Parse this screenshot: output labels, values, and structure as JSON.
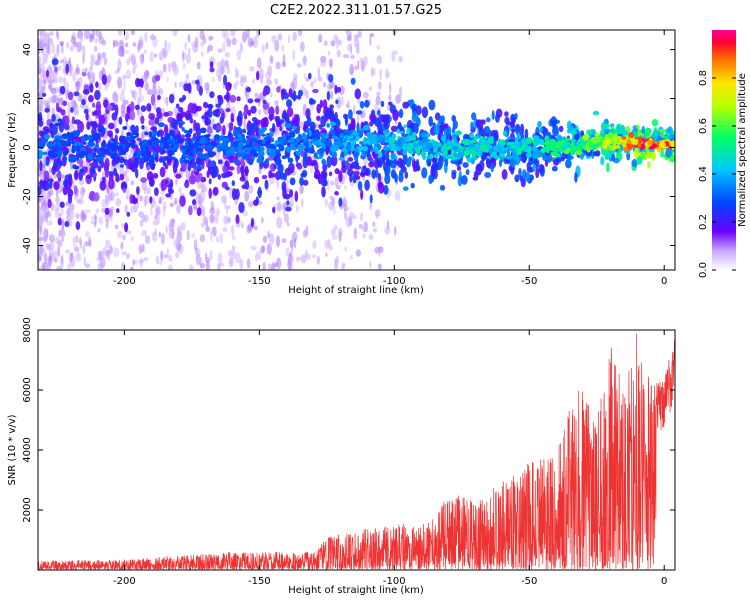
{
  "figure": {
    "title": "C2E2.2022.311.01.57.G25"
  },
  "chart_data": [
    {
      "type": "heatmap",
      "xlabel": "Height of straight line (km)",
      "ylabel": "Frequency (Hz)",
      "xlim": [
        -232,
        4
      ],
      "ylim": [
        -50,
        48
      ],
      "xticks": [
        -200,
        -150,
        -100,
        -50,
        0
      ],
      "yticks": [
        -40,
        -20,
        0,
        20,
        40
      ],
      "grid": false,
      "colorbar": {
        "label": "Normalized spectral amplitude",
        "range": [
          0,
          1
        ],
        "ticks": [
          0.0,
          0.2,
          0.4,
          0.6,
          0.8
        ]
      },
      "ridge": {
        "x": [
          -230,
          -200,
          -150,
          -120,
          -100,
          -80,
          -60,
          -40,
          -20,
          -10,
          0,
          4
        ],
        "y": [
          0,
          0,
          1,
          2,
          2,
          0,
          0,
          0,
          3,
          2,
          1,
          1
        ],
        "peak_amplitude": [
          0.35,
          0.3,
          0.35,
          0.4,
          0.45,
          0.5,
          0.5,
          0.55,
          0.75,
          0.95,
          0.9,
          0.9
        ]
      }
    },
    {
      "type": "line",
      "xlabel": "Height of straight line (km)",
      "ylabel": "SNR (10 * v/v)",
      "xlim": [
        -232,
        4
      ],
      "ylim": [
        0,
        8000
      ],
      "xticks": [
        -200,
        -150,
        -100,
        -50,
        0
      ],
      "yticks": [
        2000,
        4000,
        6000,
        8000
      ],
      "grid": false,
      "series": [
        {
          "color": "#ee3333",
          "envelope_x": [
            -232,
            -200,
            -160,
            -130,
            -125,
            -110,
            -100,
            -85,
            -80,
            -70,
            -60,
            -50,
            -40,
            -35,
            -30,
            -25,
            -20,
            -15,
            -10,
            -5,
            0,
            4
          ],
          "envelope_y": [
            300,
            350,
            600,
            600,
            1100,
            1400,
            1500,
            1700,
            2600,
            2300,
            3000,
            3600,
            3800,
            5700,
            6200,
            5000,
            7800,
            6000,
            8000,
            6200,
            6500,
            7800
          ]
        }
      ]
    }
  ]
}
